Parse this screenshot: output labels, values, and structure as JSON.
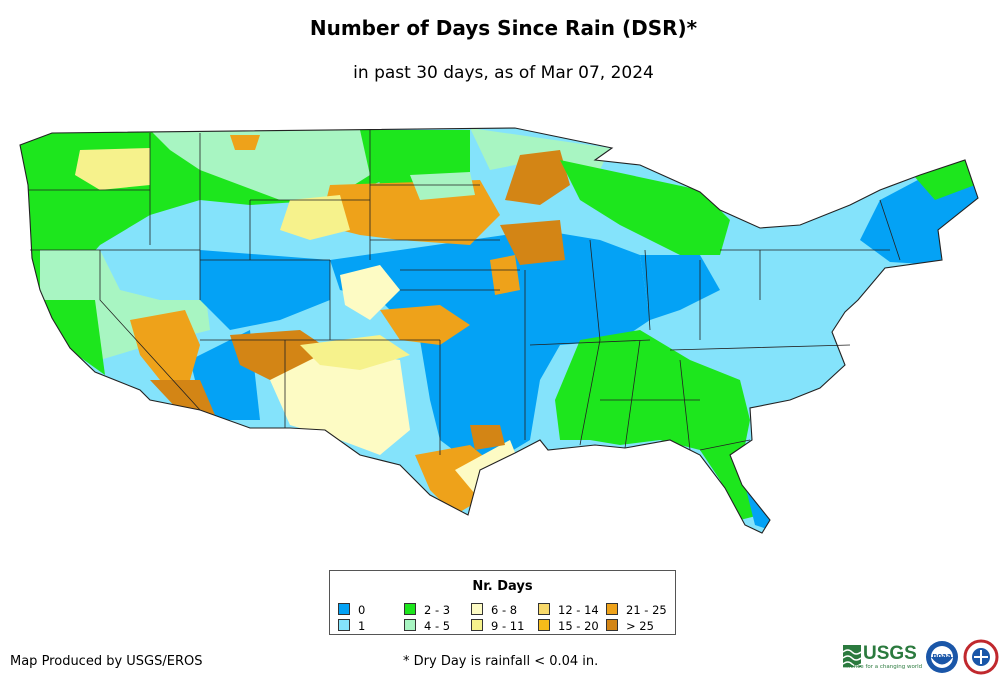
{
  "title": "Number of Days Since Rain (DSR)*",
  "subtitle": "in past 30 days, as of Mar 07, 2024",
  "legend": {
    "title": "Nr. Days",
    "items": [
      {
        "label": "0",
        "color": "#04a2f5"
      },
      {
        "label": "1",
        "color": "#84e3fb"
      },
      {
        "label": "2 - 3",
        "color": "#1de61d"
      },
      {
        "label": "4 - 5",
        "color": "#a8f5c2"
      },
      {
        "label": "6 - 8",
        "color": "#fdfbc4"
      },
      {
        "label": "9 - 11",
        "color": "#f6f28c"
      },
      {
        "label": "12 - 14",
        "color": "#f8d96a"
      },
      {
        "label": "15 - 20",
        "color": "#f6bb1a"
      },
      {
        "label": "21 - 25",
        "color": "#eea21a"
      },
      {
        "label": "> 25",
        "color": "#d38515"
      }
    ]
  },
  "credit": "Map Produced by USGS/EROS",
  "footnote": "* Dry Day is rainfall < 0.04 in.",
  "logos": {
    "usgs": "USGS",
    "usgs_tagline": "science for a changing world",
    "noaa": "noaa"
  },
  "icons": [
    "usgs-logo-icon",
    "noaa-logo-icon",
    "nws-logo-icon"
  ]
}
